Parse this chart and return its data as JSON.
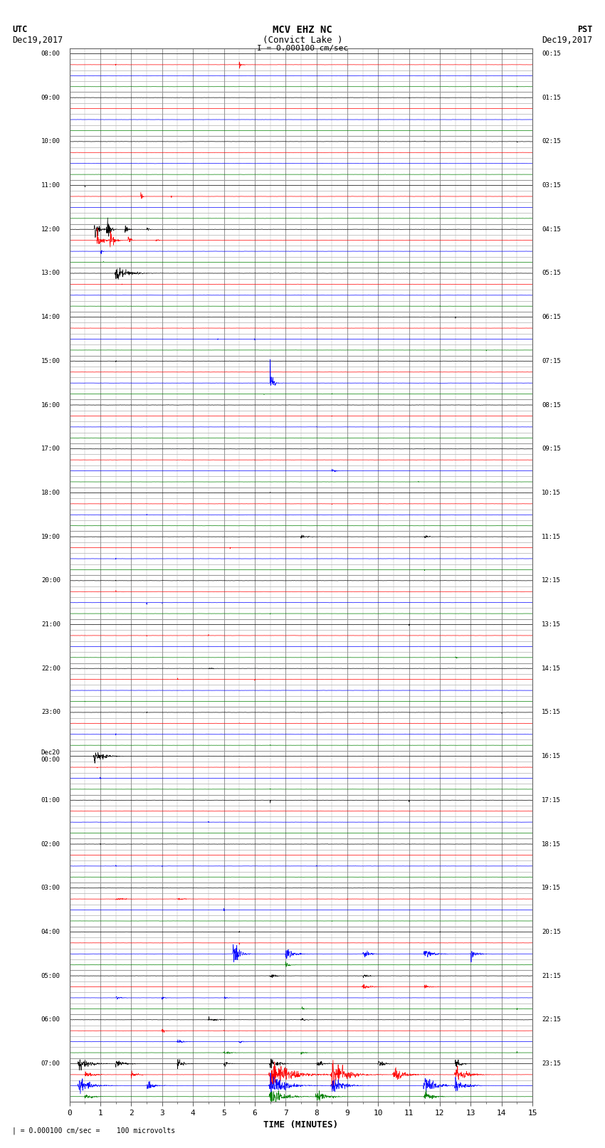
{
  "title_line1": "MCV EHZ NC",
  "title_line2": "(Convict Lake )",
  "scale_label": "I = 0.000100 cm/sec",
  "footer_label": "= 0.000100 cm/sec =    100 microvolts",
  "xlabel": "TIME (MINUTES)",
  "background": "#ffffff",
  "grid_color": "#aaaaaa",
  "left_times": [
    "08:00",
    "",
    "",
    "",
    "09:00",
    "",
    "",
    "",
    "10:00",
    "",
    "",
    "",
    "11:00",
    "",
    "",
    "",
    "12:00",
    "",
    "",
    "",
    "13:00",
    "",
    "",
    "",
    "14:00",
    "",
    "",
    "",
    "15:00",
    "",
    "",
    "",
    "16:00",
    "",
    "",
    "",
    "17:00",
    "",
    "",
    "",
    "18:00",
    "",
    "",
    "",
    "19:00",
    "",
    "",
    "",
    "20:00",
    "",
    "",
    "",
    "21:00",
    "",
    "",
    "",
    "22:00",
    "",
    "",
    "",
    "23:00",
    "",
    "",
    "",
    "Dec20\n00:00",
    "",
    "",
    "",
    "01:00",
    "",
    "",
    "",
    "02:00",
    "",
    "",
    "",
    "03:00",
    "",
    "",
    "",
    "04:00",
    "",
    "",
    "",
    "05:00",
    "",
    "",
    "",
    "06:00",
    "",
    "",
    "",
    "07:00",
    "",
    "",
    ""
  ],
  "right_times": [
    "00:15",
    "",
    "",
    "",
    "01:15",
    "",
    "",
    "",
    "02:15",
    "",
    "",
    "",
    "03:15",
    "",
    "",
    "",
    "04:15",
    "",
    "",
    "",
    "05:15",
    "",
    "",
    "",
    "06:15",
    "",
    "",
    "",
    "07:15",
    "",
    "",
    "",
    "08:15",
    "",
    "",
    "",
    "09:15",
    "",
    "",
    "",
    "10:15",
    "",
    "",
    "",
    "11:15",
    "",
    "",
    "",
    "12:15",
    "",
    "",
    "",
    "13:15",
    "",
    "",
    "",
    "14:15",
    "",
    "",
    "",
    "15:15",
    "",
    "",
    "",
    "16:15",
    "",
    "",
    "",
    "17:15",
    "",
    "",
    "",
    "18:15",
    "",
    "",
    "",
    "19:15",
    "",
    "",
    "",
    "20:15",
    "",
    "",
    "",
    "21:15",
    "",
    "",
    "",
    "22:15",
    "",
    "",
    "",
    "23:15",
    "",
    "",
    ""
  ],
  "colors": [
    "black",
    "red",
    "blue",
    "green"
  ],
  "row_color_pattern": [
    0,
    1,
    2,
    3,
    0,
    1,
    2,
    3,
    0,
    1,
    2,
    3,
    0,
    1,
    2,
    3,
    0,
    1,
    2,
    3,
    0,
    1,
    2,
    3,
    0,
    1,
    2,
    3,
    0,
    1,
    2,
    3,
    0,
    1,
    2,
    3,
    0,
    1,
    2,
    3,
    0,
    1,
    2,
    3,
    0,
    1,
    2,
    3,
    0,
    1,
    2,
    3,
    0,
    1,
    2,
    3,
    0,
    1,
    2,
    3,
    0,
    1,
    2,
    3,
    0,
    1,
    2,
    3,
    0,
    1,
    2,
    3,
    0,
    1,
    2,
    3,
    0,
    1,
    2,
    3,
    0,
    1,
    2,
    3,
    0,
    1,
    2,
    3,
    0,
    1,
    2,
    3,
    0,
    1,
    2,
    3
  ]
}
